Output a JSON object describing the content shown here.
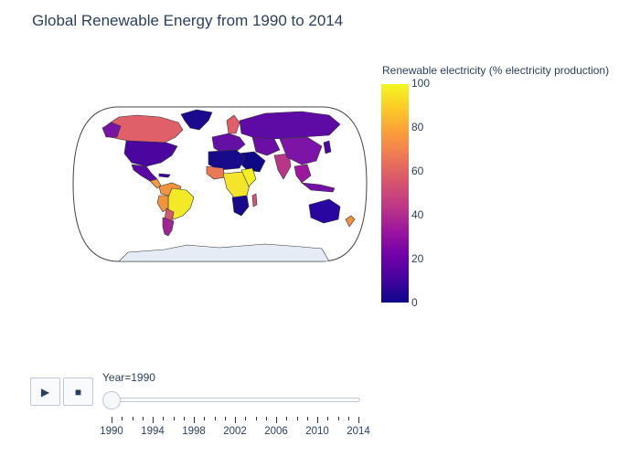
{
  "title": "Global Renewable Energy from 1990 to 2014",
  "colorbar": {
    "title": "Renewable electricity (% electricity production)",
    "ticks": [
      "100",
      "80",
      "60",
      "40",
      "20",
      "0"
    ],
    "colorscale": [
      "#0d0887",
      "#46039f",
      "#7201a8",
      "#9c179e",
      "#bd3786",
      "#d8576b",
      "#ed7953",
      "#fb9f3a",
      "#fdca26",
      "#f0f921"
    ]
  },
  "map": {
    "projection": "natural earth",
    "frame_year": "1990",
    "land_color": "#e5ecf6",
    "antarctica_color": "#e5ecf6"
  },
  "controls": {
    "play_icon": "play-icon",
    "stop_icon": "stop-icon"
  },
  "slider": {
    "current_label": "Year=1990",
    "ticks": [
      "1990",
      "1994",
      "1998",
      "2002",
      "2006",
      "2010",
      "2014"
    ],
    "value": "1990"
  }
}
